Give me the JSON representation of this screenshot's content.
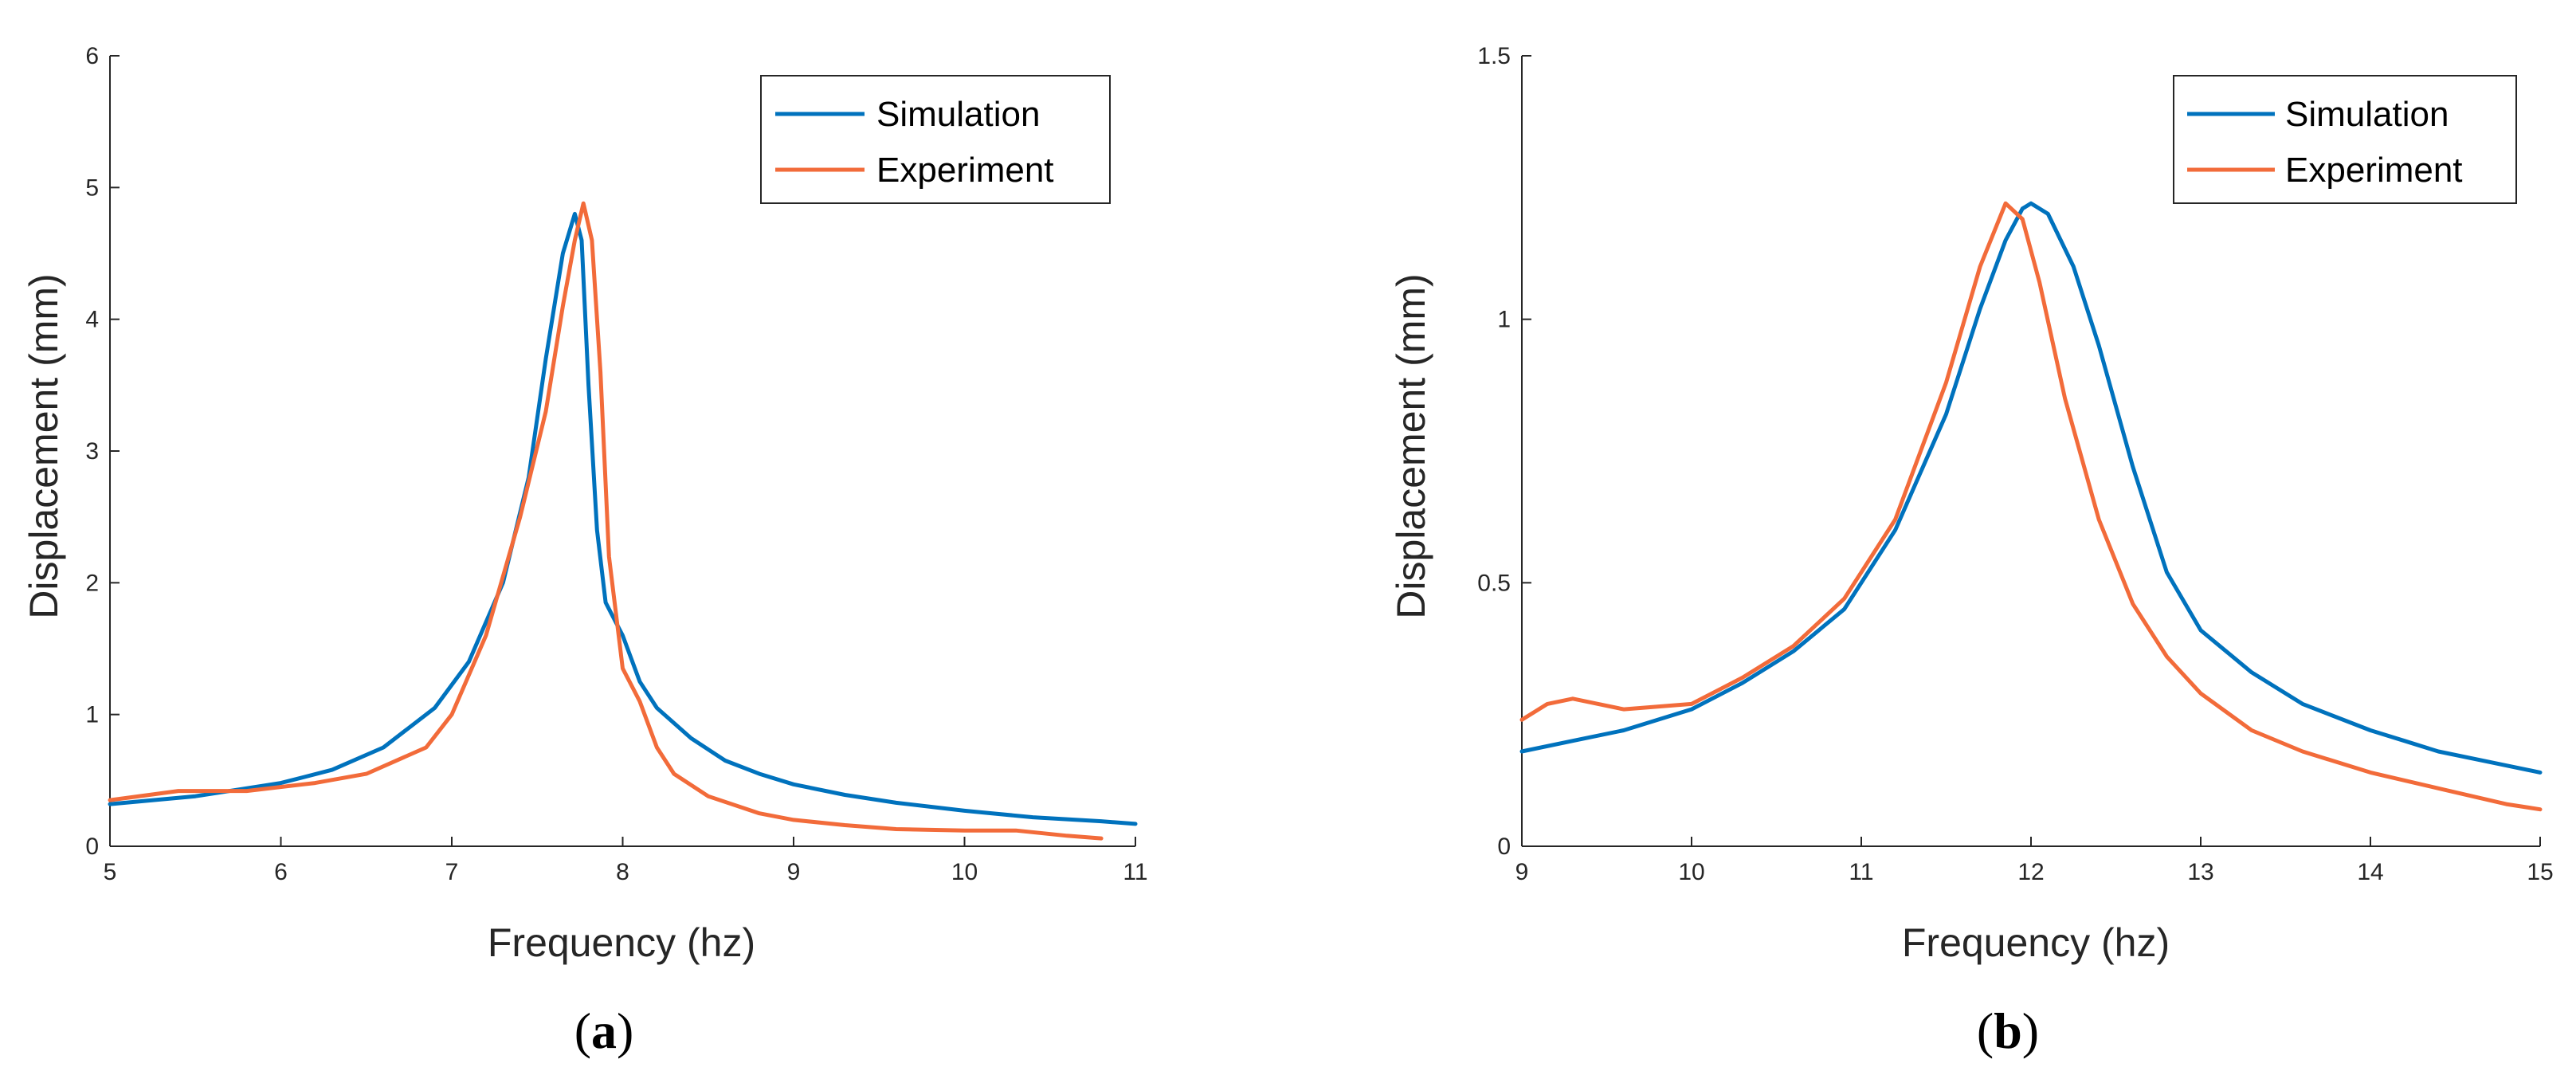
{
  "figure": {
    "colors": {
      "simulation": "#0072BD",
      "experiment": "#F26B3A",
      "axis": "#262626"
    }
  },
  "chart_data": [
    {
      "type": "line",
      "panel_label": "a",
      "xlabel": "Frequency (hz)",
      "ylabel": "Displacement (mm)",
      "xlim": [
        5,
        11
      ],
      "ylim": [
        0,
        6
      ],
      "xticks": [
        "5",
        "6",
        "7",
        "8",
        "9",
        "10",
        "11"
      ],
      "yticks": [
        "0",
        "1",
        "2",
        "3",
        "4",
        "5",
        "6"
      ],
      "legend": {
        "placement": "top-right",
        "entries": [
          "Simulation",
          "Experiment"
        ]
      },
      "series": [
        {
          "name": "Simulation",
          "color": "#0072BD",
          "x": [
            5.0,
            5.5,
            6.0,
            6.3,
            6.6,
            6.9,
            7.1,
            7.3,
            7.45,
            7.55,
            7.65,
            7.72,
            7.76,
            7.8,
            7.85,
            7.9,
            8.0,
            8.1,
            8.2,
            8.4,
            8.6,
            8.8,
            9.0,
            9.3,
            9.6,
            10.0,
            10.4,
            10.8,
            11.0
          ],
          "y": [
            0.32,
            0.38,
            0.48,
            0.58,
            0.75,
            1.05,
            1.4,
            2.0,
            2.8,
            3.7,
            4.5,
            4.8,
            4.6,
            3.5,
            2.4,
            1.85,
            1.6,
            1.25,
            1.05,
            0.82,
            0.65,
            0.55,
            0.47,
            0.39,
            0.33,
            0.27,
            0.22,
            0.19,
            0.17
          ]
        },
        {
          "name": "Experiment",
          "color": "#F26B3A",
          "x": [
            5.0,
            5.4,
            5.8,
            6.2,
            6.5,
            6.85,
            7.0,
            7.2,
            7.4,
            7.55,
            7.65,
            7.72,
            7.77,
            7.82,
            7.87,
            7.92,
            8.0,
            8.1,
            8.2,
            8.3,
            8.5,
            8.8,
            9.0,
            9.3,
            9.6,
            10.0,
            10.3,
            10.6,
            10.8
          ],
          "y": [
            0.35,
            0.42,
            0.42,
            0.48,
            0.55,
            0.75,
            1.0,
            1.6,
            2.5,
            3.3,
            4.1,
            4.6,
            4.88,
            4.6,
            3.6,
            2.2,
            1.35,
            1.1,
            0.75,
            0.55,
            0.38,
            0.25,
            0.2,
            0.16,
            0.13,
            0.12,
            0.12,
            0.08,
            0.06
          ]
        }
      ]
    },
    {
      "type": "line",
      "panel_label": "b",
      "xlabel": "Frequency (hz)",
      "ylabel": "Displacement (mm)",
      "xlim": [
        9,
        15
      ],
      "ylim": [
        0,
        1.5
      ],
      "xticks": [
        "9",
        "10",
        "11",
        "12",
        "13",
        "14",
        "15"
      ],
      "yticks": [
        "0",
        "0.5",
        "1",
        "1.5"
      ],
      "legend": {
        "placement": "top-right",
        "entries": [
          "Simulation",
          "Experiment"
        ]
      },
      "series": [
        {
          "name": "Simulation",
          "color": "#0072BD",
          "x": [
            9.0,
            9.3,
            9.6,
            10.0,
            10.3,
            10.6,
            10.9,
            11.2,
            11.5,
            11.7,
            11.85,
            11.95,
            12.0,
            12.1,
            12.25,
            12.4,
            12.6,
            12.8,
            13.0,
            13.3,
            13.6,
            14.0,
            14.2,
            14.4,
            14.7,
            15.0
          ],
          "y": [
            0.18,
            0.2,
            0.22,
            0.26,
            0.31,
            0.37,
            0.45,
            0.6,
            0.82,
            1.02,
            1.15,
            1.21,
            1.22,
            1.2,
            1.1,
            0.95,
            0.72,
            0.52,
            0.41,
            0.33,
            0.27,
            0.22,
            0.2,
            0.18,
            0.16,
            0.14
          ]
        },
        {
          "name": "Experiment",
          "color": "#F26B3A",
          "x": [
            9.0,
            9.15,
            9.3,
            9.45,
            9.6,
            10.0,
            10.3,
            10.6,
            10.9,
            11.2,
            11.5,
            11.7,
            11.85,
            11.95,
            12.05,
            12.2,
            12.4,
            12.6,
            12.8,
            13.0,
            13.3,
            13.6,
            14.0,
            14.4,
            14.8,
            15.0
          ],
          "y": [
            0.24,
            0.27,
            0.28,
            0.27,
            0.26,
            0.27,
            0.32,
            0.38,
            0.47,
            0.62,
            0.88,
            1.1,
            1.22,
            1.19,
            1.07,
            0.85,
            0.62,
            0.46,
            0.36,
            0.29,
            0.22,
            0.18,
            0.14,
            0.11,
            0.08,
            0.07
          ]
        }
      ]
    }
  ]
}
